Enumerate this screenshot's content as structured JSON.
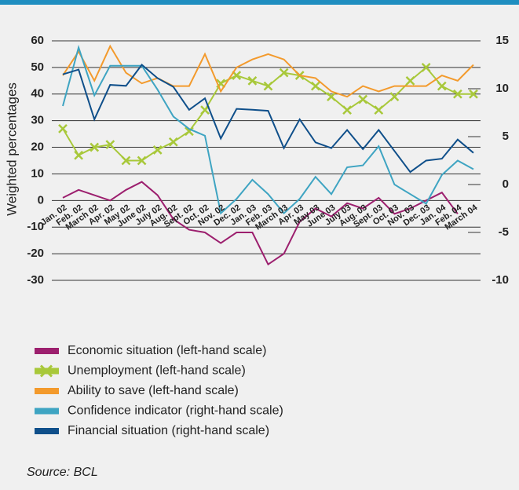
{
  "chart_data": {
    "type": "line",
    "y_label": "Weighted percentages",
    "source": "Source: BCL",
    "categories": [
      "Jan. 02",
      "Feb. 02",
      "March 02",
      "Apr. 02",
      "May 02",
      "June 02",
      "July 02",
      "Aug. 02",
      "Sept. 02",
      "Oct. 02",
      "Nov. 02",
      "Dec. 02",
      "Jan. 03",
      "Feb. 03",
      "March 03",
      "Apr. 03",
      "May 03",
      "June 03",
      "July 03",
      "Aug. 03",
      "Sept. 03",
      "Oct. 03",
      "Nov. 03",
      "Dec. 03",
      "Jan. 04",
      "Feb. 04",
      "March 04"
    ],
    "ylim": [
      -30,
      60
    ],
    "yticks": [
      -30,
      -20,
      -10,
      0,
      10,
      20,
      30,
      40,
      50,
      60
    ],
    "y2lim": [
      -10,
      15
    ],
    "y2ticks": [
      -10,
      -5,
      0,
      5,
      10,
      15
    ],
    "grid": true,
    "series": [
      {
        "name": "Economic situation (left-hand scale)",
        "color": "#9c1f6e",
        "values": [
          1,
          4,
          2,
          0,
          4,
          7,
          2,
          -7,
          -11,
          -12,
          -16,
          -12,
          -12,
          -24,
          -20,
          -8,
          -3,
          -6,
          -1,
          -3,
          1,
          -5,
          -3,
          0,
          3,
          -5,
          null
        ]
      },
      {
        "name": "Unemployment (left-hand scale)",
        "color": "#a8c83a",
        "marker": "x",
        "values": [
          27,
          17,
          20,
          21,
          15,
          15,
          19,
          22,
          26,
          34,
          44,
          47,
          45,
          43,
          48,
          47,
          43,
          39,
          34,
          38,
          34,
          39,
          45,
          50,
          43,
          40,
          40
        ]
      },
      {
        "name": "Ability to save (left-hand scale)",
        "color": "#f39a2c",
        "values": [
          47,
          56,
          45,
          58,
          48,
          44,
          46,
          43,
          43,
          55,
          41,
          50,
          53,
          55,
          53,
          47,
          46,
          41,
          39,
          43,
          41,
          43,
          43,
          43,
          47,
          45,
          51
        ]
      },
      {
        "name": "Confidence indicator (right-hand scale)",
        "color": "#3ea4c2",
        "axis": "y2",
        "values": [
          8.2,
          14.3,
          9.3,
          12.4,
          12.4,
          12.4,
          9.9,
          7.1,
          5.8,
          5.1,
          -3,
          -1.5,
          0.5,
          -1,
          -3,
          -1.5,
          0.8,
          -1,
          1.8,
          2,
          4,
          0,
          -1,
          -2,
          1,
          2.5,
          1.6
        ]
      },
      {
        "name": "Financial situation (right-hand scale)",
        "color": "#0f4f8a",
        "axis": "y2",
        "values": [
          11.5,
          12,
          6.8,
          10.4,
          10.3,
          12.5,
          11.1,
          10.2,
          7.8,
          9,
          4.8,
          7.9,
          7.8,
          7.7,
          3.8,
          6.8,
          4.4,
          3.8,
          5.7,
          3.7,
          5.7,
          3.5,
          1.3,
          2.5,
          2.7,
          4.7,
          3.3
        ]
      }
    ]
  }
}
